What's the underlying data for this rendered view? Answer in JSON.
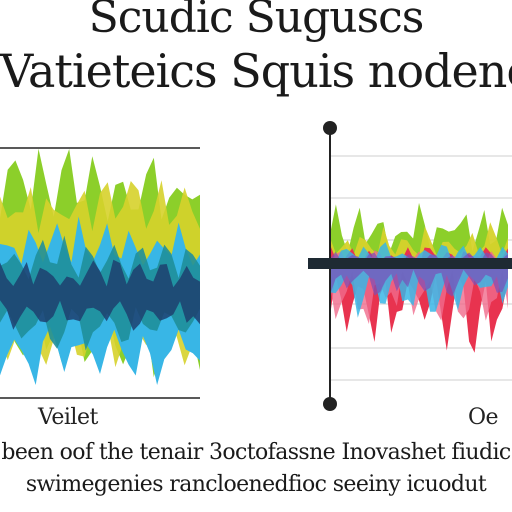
{
  "title": {
    "line1": "Scudic Suguscs",
    "line2": "Vatieteics Squis nodencl"
  },
  "left_chart": {
    "label": "Veilet"
  },
  "right_chart": {
    "label": "Oe"
  },
  "caption": {
    "line1": "been oof the tenair 3octofassne Inovashet fiudic",
    "line2": "swimegenies rancloenedfioc seeiny icuodut"
  },
  "colors": {
    "green": "#8ccf2a",
    "yellow": "#d6d22b",
    "teal": "#1f8f9a",
    "navy": "#1d3f6e",
    "sky": "#38b6e6",
    "red": "#e8334f",
    "pink": "#f06c8c",
    "purple": "#7a4fb8",
    "axis": "#222222"
  }
}
